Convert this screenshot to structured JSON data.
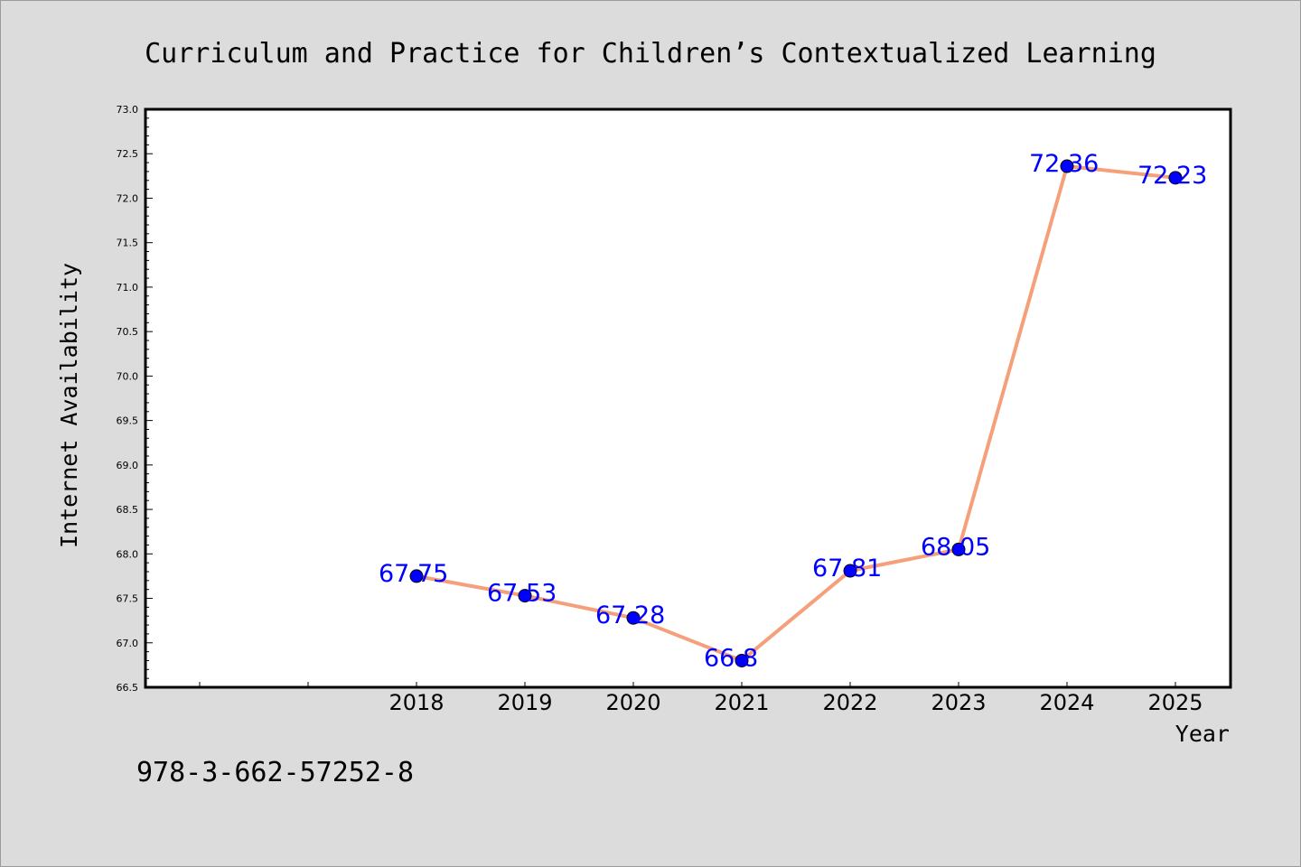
{
  "chart_data": {
    "type": "line",
    "title": "Curriculum and Practice for Children’s Contextualized Learning",
    "xlabel": "Year",
    "ylabel": "Internet Availability",
    "categories": [
      "2018",
      "2019",
      "2020",
      "2021",
      "2022",
      "2023",
      "2024",
      "2025"
    ],
    "series": [
      {
        "values": [
          67.75,
          67.53,
          67.28,
          66.8,
          67.81,
          68.05,
          72.36,
          72.23
        ],
        "data_labels": [
          "67.75",
          "67.53",
          "67.28",
          "66.8",
          "67.81",
          "68.05",
          "72.36",
          "72.23"
        ],
        "line_color": "#f5a07a",
        "marker_color": "#0000ff"
      }
    ],
    "ylim": [
      66.5,
      73.0
    ],
    "yticks": [
      "66.5",
      "67.0",
      "67.5",
      "68.0",
      "68.5",
      "69.0",
      "69.5",
      "70.0",
      "70.5",
      "71.0",
      "71.5",
      "72.0",
      "72.5",
      "73.0"
    ],
    "grid": false,
    "legend": "none"
  },
  "footer": {
    "code": "978-3-662-57252-8"
  },
  "colors": {
    "background": "#dcdcdc",
    "plot_area": "#ffffff",
    "line": "#f5a07a",
    "marker": "#0000ff",
    "data_label": "#0000ff"
  }
}
